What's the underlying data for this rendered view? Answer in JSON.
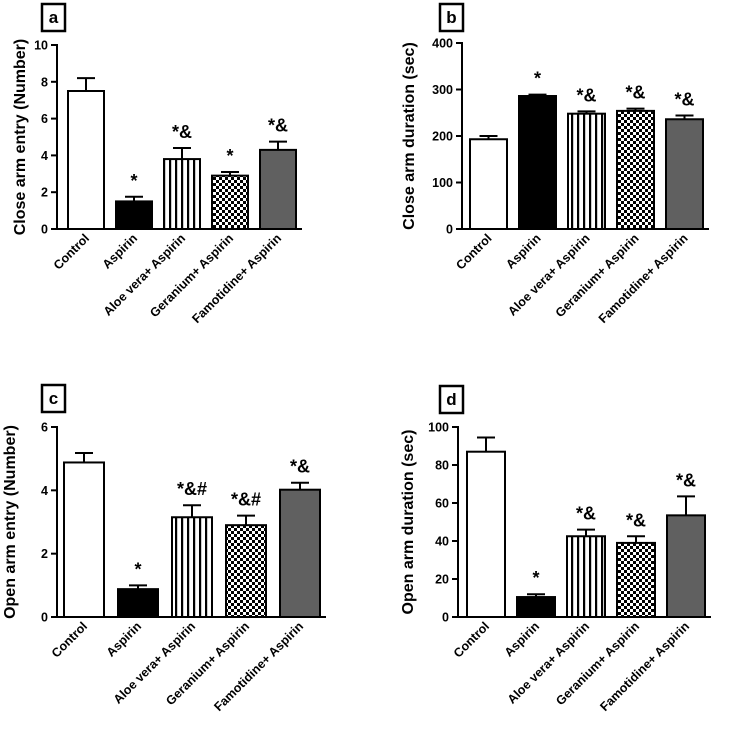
{
  "figure": {
    "colors": {
      "control": "#ffffff",
      "aspirin": "#000000",
      "aloe": "vertical-stripes",
      "geranium": "checkerboard",
      "famotidine": "#606060"
    }
  },
  "chart_data": [
    {
      "panel": "a",
      "type": "bar",
      "ylabel": "Close arm entry (Number)",
      "ylim": [
        0,
        10
      ],
      "yticks": [
        "0",
        "2",
        "4",
        "6",
        "8",
        "10"
      ],
      "categories": [
        "Control",
        "Aspirin",
        "Aloe vera+ Aspirin",
        "Geranium+ Aspirin",
        "Famotidine+ Aspirin"
      ],
      "values": [
        7.5,
        1.5,
        3.8,
        2.9,
        4.3
      ],
      "errors": [
        0.7,
        0.25,
        0.6,
        0.2,
        0.45
      ],
      "annotations": [
        "",
        "*",
        "*&",
        "*",
        "*&"
      ]
    },
    {
      "panel": "b",
      "type": "bar",
      "ylabel": "Close arm duration (sec)",
      "ylim": [
        0,
        400
      ],
      "yticks": [
        "0",
        "100",
        "200",
        "300",
        "400"
      ],
      "categories": [
        "Control",
        "Aspirin",
        "Aloe vera+ Aspirin",
        "Geranium+ Aspirin",
        "Famotidine+ Aspirin"
      ],
      "values": [
        193,
        286,
        248,
        254,
        236
      ],
      "errors": [
        7,
        3,
        5,
        5,
        8
      ],
      "annotations": [
        "",
        "*",
        "*&",
        "*&",
        "*&"
      ]
    },
    {
      "panel": "c",
      "type": "bar",
      "ylabel": "Open arm entry (Number)",
      "ylim": [
        0,
        6
      ],
      "yticks": [
        "0",
        "2",
        "4",
        "6"
      ],
      "categories": [
        "Control",
        "Aspirin",
        "Aloe vera+ Aspirin",
        "Geranium+ Aspirin",
        "Famotidine+ Aspirin"
      ],
      "values": [
        4.88,
        0.88,
        3.15,
        2.9,
        4.02
      ],
      "errors": [
        0.3,
        0.12,
        0.38,
        0.3,
        0.22
      ],
      "annotations": [
        "",
        "*",
        "*&#",
        "*&#",
        "*&"
      ]
    },
    {
      "panel": "d",
      "type": "bar",
      "ylabel": "Open arm duration (sec)",
      "ylim": [
        0,
        100
      ],
      "yticks": [
        "0",
        "20",
        "40",
        "60",
        "80",
        "100"
      ],
      "categories": [
        "Control",
        "Aspirin",
        "Aloe vera+ Aspirin",
        "Geranium+ Aspirin",
        "Famotidine+ Aspirin"
      ],
      "values": [
        87,
        10.5,
        42.5,
        39,
        53.5
      ],
      "errors": [
        7.5,
        1.5,
        3.5,
        3.5,
        10
      ],
      "annotations": [
        "",
        "*",
        "*&",
        "*&",
        "*&"
      ]
    }
  ]
}
